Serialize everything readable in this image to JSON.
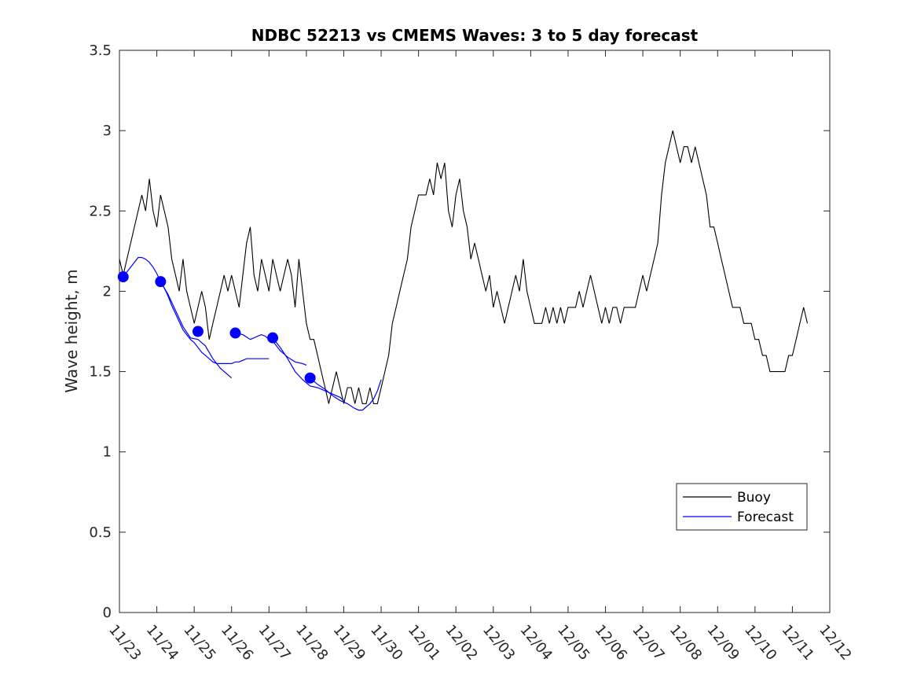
{
  "chart_data": {
    "type": "line",
    "title": "NDBC 52213 vs CMEMS Waves: 3 to 5 day forecast",
    "xlabel": "",
    "ylabel": "Wave height, m",
    "xlim": [
      "11/23",
      "12/12"
    ],
    "ylim": [
      0,
      3.5
    ],
    "x_ticks": [
      "11/23",
      "11/24",
      "11/25",
      "11/26",
      "11/27",
      "11/28",
      "11/29",
      "11/30",
      "12/01",
      "12/02",
      "12/03",
      "12/04",
      "12/05",
      "12/06",
      "12/07",
      "12/08",
      "12/09",
      "12/10",
      "12/11",
      "12/12"
    ],
    "y_ticks": [
      "0",
      "0.5",
      "1",
      "1.5",
      "2",
      "2.5",
      "3",
      "3.5"
    ],
    "grid": false,
    "legend": {
      "placement": "lower-right",
      "entries": [
        "Buoy",
        "Forecast"
      ]
    },
    "colors": {
      "buoy": "#000000",
      "forecast": "#0000ff"
    },
    "series": [
      {
        "name": "Buoy",
        "x_unit": "days since 11/23",
        "points": [
          [
            0.0,
            2.2
          ],
          [
            0.1,
            2.1
          ],
          [
            0.2,
            2.2
          ],
          [
            0.3,
            2.3
          ],
          [
            0.4,
            2.4
          ],
          [
            0.5,
            2.5
          ],
          [
            0.6,
            2.6
          ],
          [
            0.7,
            2.5
          ],
          [
            0.8,
            2.7
          ],
          [
            0.9,
            2.5
          ],
          [
            1.0,
            2.4
          ],
          [
            1.1,
            2.6
          ],
          [
            1.2,
            2.5
          ],
          [
            1.3,
            2.4
          ],
          [
            1.4,
            2.2
          ],
          [
            1.5,
            2.1
          ],
          [
            1.6,
            2.0
          ],
          [
            1.7,
            2.2
          ],
          [
            1.8,
            2.0
          ],
          [
            1.9,
            1.9
          ],
          [
            2.0,
            1.8
          ],
          [
            2.1,
            1.9
          ],
          [
            2.2,
            2.0
          ],
          [
            2.3,
            1.9
          ],
          [
            2.4,
            1.7
          ],
          [
            2.5,
            1.8
          ],
          [
            2.6,
            1.9
          ],
          [
            2.7,
            2.0
          ],
          [
            2.8,
            2.1
          ],
          [
            2.9,
            2.0
          ],
          [
            3.0,
            2.1
          ],
          [
            3.1,
            2.0
          ],
          [
            3.2,
            1.9
          ],
          [
            3.3,
            2.1
          ],
          [
            3.4,
            2.3
          ],
          [
            3.5,
            2.4
          ],
          [
            3.6,
            2.1
          ],
          [
            3.7,
            2.0
          ],
          [
            3.8,
            2.2
          ],
          [
            3.9,
            2.1
          ],
          [
            4.0,
            2.0
          ],
          [
            4.1,
            2.2
          ],
          [
            4.2,
            2.1
          ],
          [
            4.3,
            2.0
          ],
          [
            4.4,
            2.1
          ],
          [
            4.5,
            2.2
          ],
          [
            4.6,
            2.1
          ],
          [
            4.7,
            1.9
          ],
          [
            4.8,
            2.2
          ],
          [
            4.9,
            2.0
          ],
          [
            5.0,
            1.8
          ],
          [
            5.1,
            1.7
          ],
          [
            5.2,
            1.7
          ],
          [
            5.3,
            1.6
          ],
          [
            5.4,
            1.5
          ],
          [
            5.5,
            1.4
          ],
          [
            5.6,
            1.3
          ],
          [
            5.7,
            1.4
          ],
          [
            5.8,
            1.5
          ],
          [
            5.9,
            1.4
          ],
          [
            6.0,
            1.3
          ],
          [
            6.1,
            1.4
          ],
          [
            6.2,
            1.4
          ],
          [
            6.3,
            1.3
          ],
          [
            6.4,
            1.4
          ],
          [
            6.5,
            1.3
          ],
          [
            6.6,
            1.3
          ],
          [
            6.7,
            1.4
          ],
          [
            6.8,
            1.3
          ],
          [
            6.9,
            1.3
          ],
          [
            7.0,
            1.4
          ],
          [
            7.1,
            1.5
          ],
          [
            7.2,
            1.6
          ],
          [
            7.3,
            1.8
          ],
          [
            7.4,
            1.9
          ],
          [
            7.5,
            2.0
          ],
          [
            7.6,
            2.1
          ],
          [
            7.7,
            2.2
          ],
          [
            7.8,
            2.4
          ],
          [
            7.9,
            2.5
          ],
          [
            8.0,
            2.6
          ],
          [
            8.1,
            2.6
          ],
          [
            8.2,
            2.6
          ],
          [
            8.3,
            2.7
          ],
          [
            8.4,
            2.6
          ],
          [
            8.5,
            2.8
          ],
          [
            8.6,
            2.7
          ],
          [
            8.7,
            2.8
          ],
          [
            8.8,
            2.5
          ],
          [
            8.9,
            2.4
          ],
          [
            9.0,
            2.6
          ],
          [
            9.1,
            2.7
          ],
          [
            9.2,
            2.5
          ],
          [
            9.3,
            2.4
          ],
          [
            9.4,
            2.2
          ],
          [
            9.5,
            2.3
          ],
          [
            9.6,
            2.2
          ],
          [
            9.7,
            2.1
          ],
          [
            9.8,
            2.0
          ],
          [
            9.9,
            2.1
          ],
          [
            10.0,
            1.9
          ],
          [
            10.1,
            2.0
          ],
          [
            10.2,
            1.9
          ],
          [
            10.3,
            1.8
          ],
          [
            10.4,
            1.9
          ],
          [
            10.5,
            2.0
          ],
          [
            10.6,
            2.1
          ],
          [
            10.7,
            2.0
          ],
          [
            10.8,
            2.2
          ],
          [
            10.9,
            2.0
          ],
          [
            11.0,
            1.9
          ],
          [
            11.1,
            1.8
          ],
          [
            11.2,
            1.8
          ],
          [
            11.3,
            1.8
          ],
          [
            11.4,
            1.9
          ],
          [
            11.5,
            1.8
          ],
          [
            11.6,
            1.9
          ],
          [
            11.7,
            1.8
          ],
          [
            11.8,
            1.9
          ],
          [
            11.9,
            1.8
          ],
          [
            12.0,
            1.9
          ],
          [
            12.1,
            1.9
          ],
          [
            12.2,
            1.9
          ],
          [
            12.3,
            2.0
          ],
          [
            12.4,
            1.9
          ],
          [
            12.5,
            2.0
          ],
          [
            12.6,
            2.1
          ],
          [
            12.7,
            2.0
          ],
          [
            12.8,
            1.9
          ],
          [
            12.9,
            1.8
          ],
          [
            13.0,
            1.9
          ],
          [
            13.1,
            1.8
          ],
          [
            13.2,
            1.9
          ],
          [
            13.3,
            1.9
          ],
          [
            13.4,
            1.8
          ],
          [
            13.5,
            1.9
          ],
          [
            13.6,
            1.9
          ],
          [
            13.7,
            1.9
          ],
          [
            13.8,
            1.9
          ],
          [
            13.9,
            2.0
          ],
          [
            14.0,
            2.1
          ],
          [
            14.1,
            2.0
          ],
          [
            14.2,
            2.1
          ],
          [
            14.3,
            2.2
          ],
          [
            14.4,
            2.3
          ],
          [
            14.5,
            2.6
          ],
          [
            14.6,
            2.8
          ],
          [
            14.7,
            2.9
          ],
          [
            14.8,
            3.0
          ],
          [
            14.9,
            2.9
          ],
          [
            15.0,
            2.8
          ],
          [
            15.1,
            2.9
          ],
          [
            15.2,
            2.9
          ],
          [
            15.3,
            2.8
          ],
          [
            15.4,
            2.9
          ],
          [
            15.5,
            2.8
          ],
          [
            15.6,
            2.7
          ],
          [
            15.7,
            2.6
          ],
          [
            15.8,
            2.4
          ],
          [
            15.9,
            2.4
          ],
          [
            16.0,
            2.3
          ],
          [
            16.1,
            2.2
          ],
          [
            16.2,
            2.1
          ],
          [
            16.3,
            2.0
          ],
          [
            16.4,
            1.9
          ],
          [
            16.5,
            1.9
          ],
          [
            16.6,
            1.9
          ],
          [
            16.7,
            1.8
          ],
          [
            16.8,
            1.8
          ],
          [
            16.9,
            1.8
          ],
          [
            17.0,
            1.7
          ],
          [
            17.1,
            1.7
          ],
          [
            17.2,
            1.6
          ],
          [
            17.3,
            1.6
          ],
          [
            17.4,
            1.5
          ],
          [
            17.5,
            1.5
          ],
          [
            17.6,
            1.5
          ],
          [
            17.7,
            1.5
          ],
          [
            17.8,
            1.5
          ],
          [
            17.9,
            1.6
          ],
          [
            18.0,
            1.6
          ],
          [
            18.1,
            1.7
          ],
          [
            18.2,
            1.8
          ],
          [
            18.3,
            1.9
          ],
          [
            18.4,
            1.8
          ]
        ]
      },
      {
        "name": "Forecast",
        "x_unit": "days since 11/23",
        "segments": [
          [
            [
              0.1,
              2.09
            ],
            [
              0.2,
              2.12
            ],
            [
              0.3,
              2.15
            ],
            [
              0.4,
              2.18
            ],
            [
              0.5,
              2.21
            ],
            [
              0.6,
              2.21
            ],
            [
              0.7,
              2.2
            ],
            [
              0.8,
              2.18
            ],
            [
              0.9,
              2.15
            ],
            [
              1.0,
              2.11
            ],
            [
              1.1,
              2.06
            ],
            [
              1.2,
              2.02
            ],
            [
              1.3,
              1.97
            ],
            [
              1.4,
              1.91
            ],
            [
              1.5,
              1.86
            ],
            [
              1.6,
              1.81
            ],
            [
              1.7,
              1.76
            ],
            [
              1.8,
              1.73
            ],
            [
              1.9,
              1.7
            ],
            [
              2.0,
              1.68
            ],
            [
              2.1,
              1.65
            ],
            [
              2.2,
              1.62
            ],
            [
              2.3,
              1.6
            ],
            [
              2.4,
              1.58
            ],
            [
              2.5,
              1.56
            ],
            [
              2.6,
              1.55
            ],
            [
              2.7,
              1.55
            ],
            [
              2.8,
              1.55
            ],
            [
              2.9,
              1.55
            ],
            [
              3.0,
              1.55
            ],
            [
              3.1,
              1.56
            ],
            [
              3.2,
              1.56
            ],
            [
              3.3,
              1.57
            ],
            [
              3.4,
              1.58
            ],
            [
              3.5,
              1.58
            ],
            [
              3.6,
              1.58
            ],
            [
              3.7,
              1.58
            ],
            [
              3.8,
              1.58
            ],
            [
              3.9,
              1.58
            ],
            [
              4.0,
              1.58
            ]
          ],
          [
            [
              1.1,
              2.06
            ],
            [
              1.3,
              1.98
            ],
            [
              1.5,
              1.88
            ],
            [
              1.7,
              1.78
            ],
            [
              1.9,
              1.71
            ],
            [
              2.1,
              1.7
            ],
            [
              2.3,
              1.66
            ],
            [
              2.5,
              1.58
            ],
            [
              2.7,
              1.52
            ],
            [
              2.9,
              1.48
            ],
            [
              3.0,
              1.46
            ]
          ],
          [
            [
              3.1,
              1.74
            ],
            [
              3.3,
              1.73
            ],
            [
              3.5,
              1.7
            ],
            [
              3.7,
              1.72
            ],
            [
              3.8,
              1.73
            ],
            [
              3.9,
              1.72
            ],
            [
              4.0,
              1.7
            ],
            [
              4.1,
              1.69
            ],
            [
              4.3,
              1.63
            ],
            [
              4.5,
              1.59
            ],
            [
              4.7,
              1.56
            ],
            [
              4.9,
              1.55
            ],
            [
              5.0,
              1.54
            ]
          ],
          [
            [
              4.1,
              1.71
            ],
            [
              4.3,
              1.65
            ],
            [
              4.5,
              1.58
            ],
            [
              4.7,
              1.5
            ],
            [
              4.9,
              1.45
            ],
            [
              5.1,
              1.41
            ],
            [
              5.3,
              1.4
            ],
            [
              5.5,
              1.38
            ],
            [
              5.7,
              1.36
            ],
            [
              5.9,
              1.34
            ],
            [
              6.0,
              1.32
            ]
          ],
          [
            [
              5.1,
              1.46
            ],
            [
              5.3,
              1.42
            ],
            [
              5.5,
              1.39
            ],
            [
              5.7,
              1.35
            ],
            [
              5.9,
              1.32
            ],
            [
              6.1,
              1.3
            ],
            [
              6.3,
              1.27
            ],
            [
              6.4,
              1.26
            ],
            [
              6.5,
              1.26
            ],
            [
              6.6,
              1.28
            ],
            [
              6.7,
              1.3
            ],
            [
              6.8,
              1.33
            ],
            [
              6.9,
              1.38
            ],
            [
              7.0,
              1.45
            ]
          ]
        ],
        "markers": [
          [
            0.1,
            2.09
          ],
          [
            1.1,
            2.06
          ],
          [
            2.1,
            1.75
          ],
          [
            3.1,
            1.74
          ],
          [
            4.1,
            1.71
          ],
          [
            5.1,
            1.46
          ]
        ]
      }
    ]
  }
}
